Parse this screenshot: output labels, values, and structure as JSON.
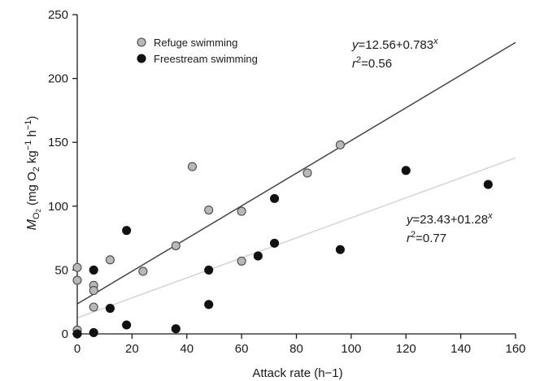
{
  "chart_data": {
    "type": "scatter",
    "xlabel": "Attack rate (h−1)",
    "ylabel": {
      "symbol": "M",
      "subscript_main": "O",
      "subscript_num": "2",
      "units_open": "(mg O",
      "units_sub": "2",
      "units_mid": " kg",
      "units_sup1": "−1",
      "units_h": " h",
      "units_sup2": "−1",
      "units_close": ")"
    },
    "xlim": [
      0,
      160
    ],
    "ylim": [
      0,
      250
    ],
    "xticks": [
      0,
      20,
      40,
      60,
      80,
      100,
      120,
      140,
      160
    ],
    "yticks": [
      0,
      50,
      100,
      150,
      200,
      250
    ],
    "legend_position": "top-left",
    "series": [
      {
        "name": "Refuge swimming",
        "color": "#b8b8b8",
        "marker": "circle",
        "points": [
          [
            0,
            52
          ],
          [
            0,
            42
          ],
          [
            0,
            3
          ],
          [
            6,
            38
          ],
          [
            6,
            34
          ],
          [
            6,
            21
          ],
          [
            12,
            58
          ],
          [
            24,
            49
          ],
          [
            36,
            69
          ],
          [
            42,
            131
          ],
          [
            48,
            97
          ],
          [
            60,
            96
          ],
          [
            60,
            57
          ],
          [
            84,
            126
          ],
          [
            96,
            148
          ]
        ],
        "fit": {
          "intercept": 12.56,
          "slope": 0.783,
          "x_range": [
            0,
            160
          ],
          "line_color": "#d4d4d4",
          "eq_y": "y",
          "eq_rhs": "=12.56+0.783",
          "eq_x": "x",
          "r2_r": "r",
          "r2_sup": "2",
          "r2_val": "=0.56"
        }
      },
      {
        "name": "Freestream swimming",
        "color": "#111111",
        "marker": "circle",
        "points": [
          [
            0,
            0
          ],
          [
            6,
            50
          ],
          [
            6,
            1
          ],
          [
            12,
            20
          ],
          [
            18,
            81
          ],
          [
            18,
            7
          ],
          [
            36,
            4
          ],
          [
            48,
            50
          ],
          [
            48,
            23
          ],
          [
            66,
            61
          ],
          [
            72,
            106
          ],
          [
            72,
            71
          ],
          [
            96,
            66
          ],
          [
            120,
            128
          ],
          [
            150,
            117
          ]
        ],
        "fit": {
          "intercept": 23.43,
          "slope": 1.28,
          "x_range": [
            0,
            160
          ],
          "line_color": "#444444",
          "eq_y": "y",
          "eq_rhs": "=23.43+01.28",
          "eq_x": "x",
          "r2_r": "r",
          "r2_sup": "2",
          "r2_val": "=0.77"
        }
      }
    ]
  }
}
